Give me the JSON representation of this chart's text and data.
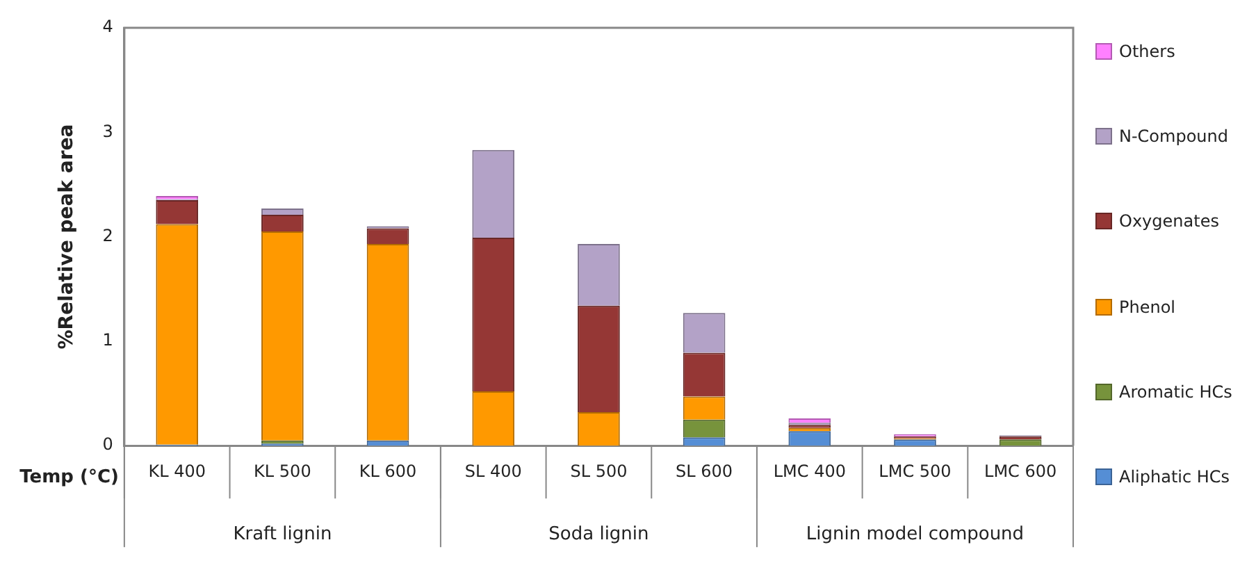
{
  "chart_data": {
    "type": "bar",
    "stacked": true,
    "ylabel": "%Relative peak area",
    "xlabel": "Temp (°C)",
    "categories": [
      "KL 400",
      "KL 500",
      "KL 600",
      "SL 400",
      "SL 500",
      "SL 600",
      "LMC 400",
      "LMC 500",
      "LMC 600"
    ],
    "series": [
      {
        "name": "Aliphatic HCs",
        "color": "#558ed5",
        "values": [
          0.01,
          0.02,
          0.05,
          0,
          0,
          0.08,
          0.14,
          0.06,
          0
        ]
      },
      {
        "name": "Aromatic HCs",
        "color": "#77933c",
        "values": [
          0,
          0.03,
          0,
          0,
          0,
          0.17,
          0,
          0,
          0.06
        ]
      },
      {
        "name": "Phenol",
        "color": "#ff9900",
        "values": [
          2.11,
          2.0,
          1.88,
          0.52,
          0.32,
          0.22,
          0.03,
          0.01,
          0
        ]
      },
      {
        "name": "Oxygenates",
        "color": "#953735",
        "values": [
          0.23,
          0.16,
          0.15,
          1.47,
          1.02,
          0.42,
          0.03,
          0.02,
          0.03
        ]
      },
      {
        "name": "N-Compound",
        "color": "#b3a2c7",
        "values": [
          0.01,
          0.06,
          0.02,
          0.84,
          0.59,
          0.38,
          0.02,
          0,
          0.01
        ]
      },
      {
        "name": "Others",
        "color": "#ff80ff",
        "values": [
          0.03,
          0,
          0,
          0,
          0,
          0,
          0.04,
          0.02,
          0
        ]
      }
    ],
    "ylim": [
      0,
      4
    ],
    "yticks": [
      0,
      1,
      2,
      3,
      4
    ],
    "grid": false,
    "legend": "right",
    "annotations": [
      "Kraft lignin",
      "Soda lignin",
      "Lignin model compound"
    ]
  }
}
